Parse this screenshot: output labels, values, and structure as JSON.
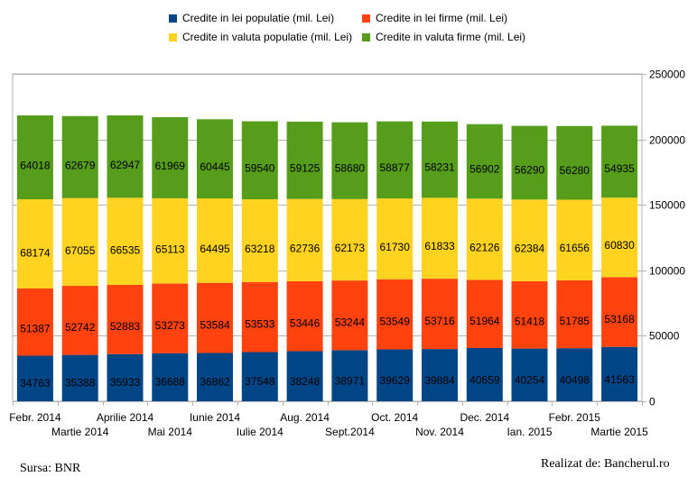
{
  "chart_data": {
    "type": "bar",
    "stacked": true,
    "categories": [
      "Febr. 2014",
      "Martie 2014",
      "Aprilie 2014",
      "Mai 2014",
      "Iunie 2014",
      "Iulie 2014",
      "Aug. 2014",
      "Sept.2014",
      "Oct. 2014",
      "Nov. 2014",
      "Dec. 2014",
      "Ian. 2015",
      "Febr. 2015",
      "Martie 2015"
    ],
    "series": [
      {
        "name": "Credite in lei populatie (mil. Lei)",
        "color": "#004586",
        "values": [
          34763,
          35388,
          35933,
          36688,
          36862,
          37548,
          38248,
          38971,
          39629,
          39884,
          40659,
          40254,
          40498,
          41563
        ]
      },
      {
        "name": "Credite in lei firme (mil. Lei)",
        "color": "#ff420e",
        "values": [
          51387,
          52742,
          52883,
          53273,
          53584,
          53533,
          53446,
          53244,
          53549,
          53716,
          51964,
          51418,
          51785,
          53168
        ]
      },
      {
        "name": "Credite in valuta populatie (mil. Lei)",
        "color": "#ffd320",
        "values": [
          68174,
          67055,
          66535,
          65113,
          64495,
          63218,
          62736,
          62173,
          61730,
          61833,
          62126,
          62384,
          61656,
          60830
        ]
      },
      {
        "name": "Credite in valuta firme (mil. Lei)",
        "color": "#579d1c",
        "values": [
          64018,
          62679,
          62947,
          61969,
          60445,
          59540,
          59125,
          58680,
          58877,
          58231,
          56902,
          56290,
          56280,
          54935
        ]
      }
    ],
    "ylim": [
      0,
      250000
    ],
    "yticks": [
      "0",
      "50000",
      "100000",
      "150000",
      "200000",
      "250000"
    ],
    "y_axis_side": "right",
    "grid": true,
    "legend_position": "top"
  },
  "footer": {
    "source": "Sursa: BNR",
    "credit": "Realizat de: Bancherul.ro"
  }
}
